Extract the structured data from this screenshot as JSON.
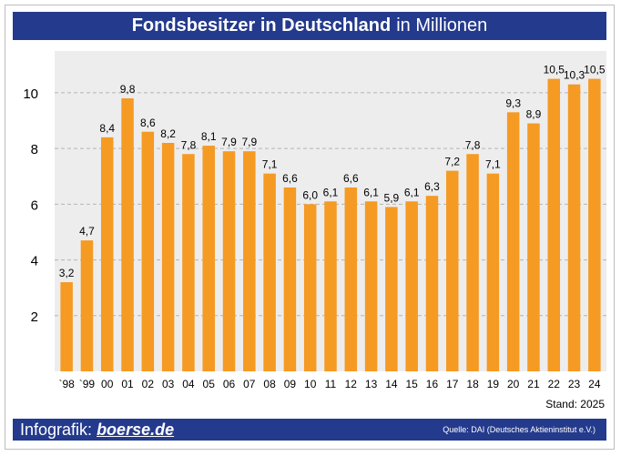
{
  "header": {
    "title_bold": "Fondsbesitzer in Deutschland",
    "title_light": "in Millionen"
  },
  "footer": {
    "stand": "Stand: 2025",
    "infografik_label": "Infografik:",
    "brand": "boerse.de",
    "source": "Quelle: DAI (Deutsches Aktieninstitut e.V.)"
  },
  "colors": {
    "bar": "#f59a23",
    "header_bg": "#243a8c",
    "plot_bg": "#ededed",
    "grid": "#b4b4b4"
  },
  "chart_data": {
    "type": "bar",
    "title": "Fondsbesitzer in Deutschland in Millionen",
    "xlabel": "",
    "ylabel": "",
    "categories": [
      "`98",
      "`99",
      "00",
      "01",
      "02",
      "03",
      "04",
      "05",
      "06",
      "07",
      "08",
      "09",
      "10",
      "11",
      "12",
      "13",
      "14",
      "15",
      "16",
      "17",
      "18",
      "19",
      "20",
      "21",
      "22",
      "23",
      "24"
    ],
    "values": [
      3.2,
      4.7,
      8.4,
      9.8,
      8.6,
      8.2,
      7.8,
      8.1,
      7.9,
      7.9,
      7.1,
      6.6,
      6.0,
      6.1,
      6.6,
      6.1,
      5.9,
      6.1,
      6.3,
      7.2,
      7.8,
      7.1,
      9.3,
      8.9,
      10.5,
      10.3,
      10.5
    ],
    "value_labels": [
      "3,2",
      "4,7",
      "8,4",
      "9,8",
      "8,6",
      "8,2",
      "7,8",
      "8,1",
      "7,9",
      "7,9",
      "7,1",
      "6,6",
      "6,0",
      "6,1",
      "6,6",
      "6,1",
      "5,9",
      "6,1",
      "6,3",
      "7,2",
      "7,8",
      "7,1",
      "9,3",
      "8,9",
      "10,5",
      "10,3",
      "10,5"
    ],
    "ylim": [
      0,
      11.5
    ],
    "yticks": [
      2,
      4,
      6,
      8,
      10
    ],
    "ytick_labels": [
      "2",
      "4",
      "6",
      "8",
      "10"
    ],
    "grid": true
  }
}
